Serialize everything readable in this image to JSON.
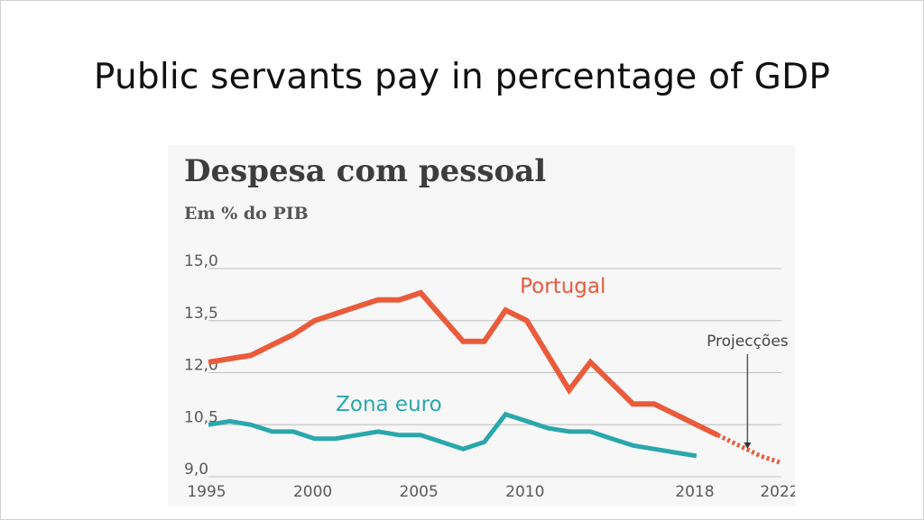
{
  "slide": {
    "title": "Public servants pay in percentage of GDP"
  },
  "chart_data": {
    "type": "line",
    "title": "Despesa com pessoal",
    "subtitle": "Em % do PIB",
    "xlabel": "",
    "ylabel": "",
    "ylim": [
      9.0,
      15.0
    ],
    "xlim": [
      1995,
      2022
    ],
    "yticks": [
      15.0,
      13.5,
      12.0,
      10.5,
      9.0
    ],
    "ytick_labels": [
      "15,0",
      "13,5",
      "12,0",
      "10,5",
      "9,0"
    ],
    "xticks": [
      1995,
      2000,
      2005,
      2010,
      2018,
      2022
    ],
    "xtick_labels": [
      "1995",
      "2000",
      "2005",
      "2010",
      "2018",
      "2022"
    ],
    "grid": true,
    "annotation": {
      "text": "Projecções",
      "x": 2020.4
    },
    "colors": {
      "portugal": "#ea5b3c",
      "zona_euro": "#2aa7ad",
      "grid": "#bdbdbd"
    },
    "series": [
      {
        "name": "Portugal",
        "x": [
          1995,
          1996,
          1997,
          1998,
          1999,
          2000,
          2001,
          2002,
          2003,
          2004,
          2005,
          2006,
          2007,
          2008,
          2009,
          2010,
          2011,
          2012,
          2013,
          2014,
          2015,
          2016,
          2017,
          2018,
          2019
        ],
        "values": [
          12.3,
          12.4,
          12.5,
          12.8,
          13.1,
          13.5,
          13.7,
          13.9,
          14.1,
          14.1,
          14.3,
          13.6,
          12.9,
          12.9,
          13.8,
          13.5,
          12.5,
          11.5,
          12.3,
          11.7,
          11.1,
          11.1,
          10.8,
          10.5,
          10.2
        ]
      },
      {
        "name": "Zona euro",
        "x": [
          1995,
          1996,
          1997,
          1998,
          1999,
          2000,
          2001,
          2002,
          2003,
          2004,
          2005,
          2006,
          2007,
          2008,
          2009,
          2010,
          2011,
          2012,
          2013,
          2014,
          2015,
          2016,
          2017,
          2018
        ],
        "values": [
          10.5,
          10.6,
          10.5,
          10.3,
          10.3,
          10.1,
          10.1,
          10.2,
          10.3,
          10.2,
          10.2,
          10.0,
          9.8,
          10.0,
          10.8,
          10.6,
          10.4,
          10.3,
          10.3,
          10.1,
          9.9,
          9.8,
          9.7,
          9.6
        ]
      },
      {
        "name": "Portugal (projecção)",
        "x": [
          2019,
          2020,
          2021,
          2022
        ],
        "values": [
          10.2,
          9.9,
          9.6,
          9.4
        ]
      }
    ],
    "series_labels": [
      {
        "text": "Portugal",
        "x": 2011.7,
        "y": 14.3
      },
      {
        "text": "Zona euro",
        "x": 2003.5,
        "y": 10.9
      }
    ]
  }
}
